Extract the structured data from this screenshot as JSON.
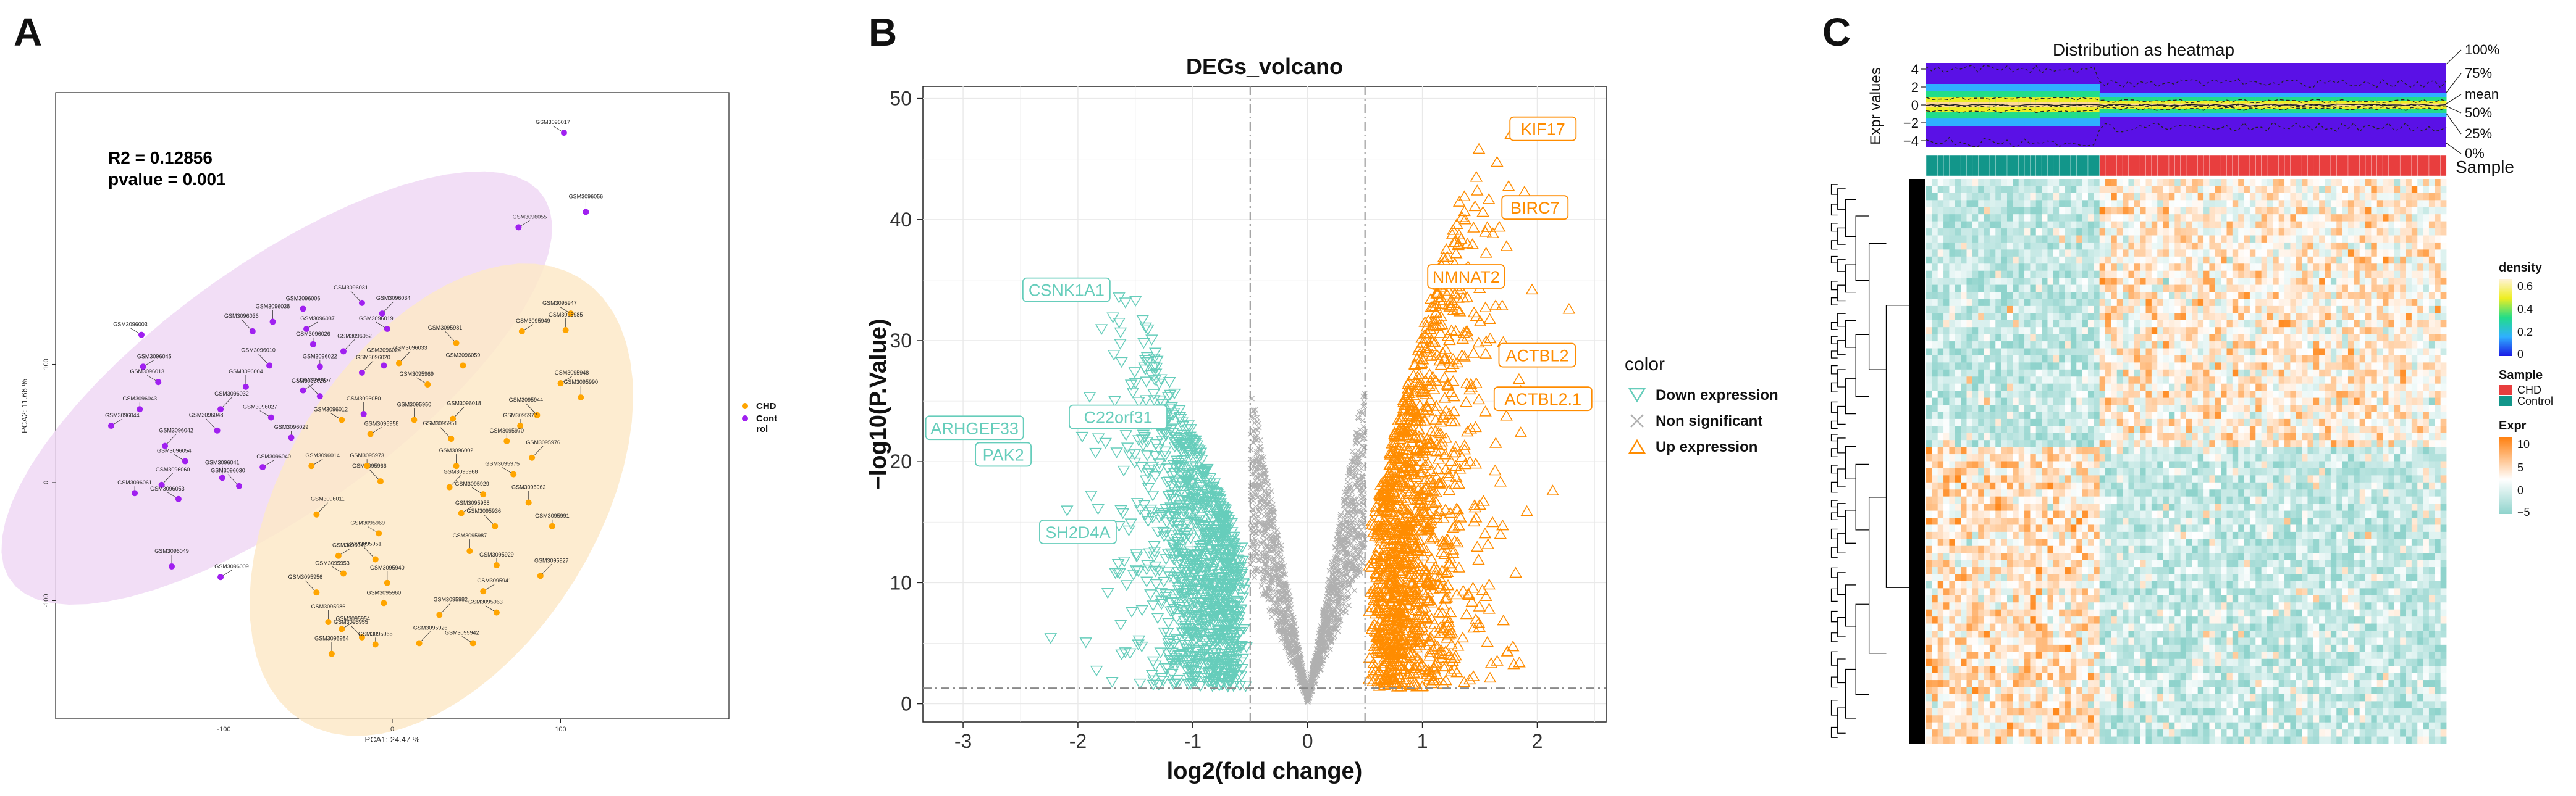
{
  "panel_labels": {
    "a": "A",
    "b": "B",
    "c": "C"
  },
  "colors": {
    "chd": "#ffa500",
    "control": "#a020f0",
    "chd_ellipse": "#fde9c8",
    "control_ellipse": "#f0d8f4",
    "down": "#66cdbb",
    "non_sig": "#b0b0b0",
    "up": "#ff8c00",
    "heat_low": "#8fd3cc",
    "heat_high": "#ff8a1f",
    "sample_chd": "#e83e3e",
    "sample_control": "#12968a"
  },
  "chart_data": [
    {
      "type": "scatter",
      "panel": "A",
      "title": "",
      "stats_r2": "R2 = 0.12856",
      "stats_p": "pvalue = 0.001",
      "xlabel": "PCA1: 24.47 %",
      "ylabel": "PCA2: 11.66 %",
      "xlim": [
        -200,
        200
      ],
      "ylim": [
        -200,
        330
      ],
      "xticks": [
        "-100",
        "0",
        "100"
      ],
      "yticks": [
        "-100",
        "0",
        "100"
      ],
      "legend": {
        "position": "right",
        "items": [
          "CHD",
          "Cont",
          "rol"
        ]
      },
      "series": [
        {
          "name": "Control",
          "points": [
            {
              "label": "GSM3096017",
              "x": 102,
              "y": 296
            },
            {
              "label": "GSM3096056",
              "x": 115,
              "y": 229
            },
            {
              "label": "GSM3096055",
              "x": 75,
              "y": 216
            },
            {
              "label": "GSM3096031",
              "x": -18,
              "y": 152
            },
            {
              "label": "GSM3096006",
              "x": -53,
              "y": 147
            },
            {
              "label": "GSM3096034",
              "x": -6,
              "y": 143
            },
            {
              "label": "GSM3096019",
              "x": -3,
              "y": 130
            },
            {
              "label": "GSM3096038",
              "x": -71,
              "y": 136
            },
            {
              "label": "GSM3096037",
              "x": -51,
              "y": 130
            },
            {
              "label": "GSM3096036",
              "x": -83,
              "y": 128
            },
            {
              "label": "GSM3096026",
              "x": -47,
              "y": 117
            },
            {
              "label": "GSM3096052",
              "x": -29,
              "y": 111
            },
            {
              "label": "GSM3096003",
              "x": -149,
              "y": 125
            },
            {
              "label": "GSM3096024",
              "x": -5,
              "y": 99
            },
            {
              "label": "GSM3096045",
              "x": -148,
              "y": 98
            },
            {
              "label": "GSM3096010",
              "x": -73,
              "y": 99
            },
            {
              "label": "GSM3096022",
              "x": -43,
              "y": 98
            },
            {
              "label": "GSM3096020",
              "x": -18,
              "y": 93
            },
            {
              "label": "GSM3096013",
              "x": -139,
              "y": 85
            },
            {
              "label": "GSM3096004",
              "x": -87,
              "y": 81
            },
            {
              "label": "GSM3096057",
              "x": -53,
              "y": 78
            },
            {
              "label": "GSM3096025",
              "x": -43,
              "y": 73
            },
            {
              "label": "GSM3096043",
              "x": -150,
              "y": 62
            },
            {
              "label": "GSM3096032",
              "x": -102,
              "y": 62
            },
            {
              "label": "GSM3096027",
              "x": -72,
              "y": 55
            },
            {
              "label": "GSM3096050",
              "x": -17,
              "y": 58
            },
            {
              "label": "GSM3096044",
              "x": -167,
              "y": 48
            },
            {
              "label": "GSM3096048",
              "x": -104,
              "y": 44
            },
            {
              "label": "GSM3096029",
              "x": -60,
              "y": 38
            },
            {
              "label": "GSM3096042",
              "x": -135,
              "y": 31
            },
            {
              "label": "GSM3096054",
              "x": -123,
              "y": 18
            },
            {
              "label": "GSM3096041",
              "x": -101,
              "y": 4
            },
            {
              "label": "GSM3096040",
              "x": -77,
              "y": 13
            },
            {
              "label": "GSM3096030",
              "x": -91,
              "y": -3
            },
            {
              "label": "GSM3096061",
              "x": -153,
              "y": -9
            },
            {
              "label": "GSM3096060",
              "x": -137,
              "y": -2
            },
            {
              "label": "GSM3096053",
              "x": -127,
              "y": -14
            },
            {
              "label": "GSM3096049",
              "x": -131,
              "y": -71
            },
            {
              "label": "GSM3096009",
              "x": -102,
              "y": -80
            }
          ]
        },
        {
          "name": "CHD",
          "points": [
            {
              "label": "GSM3095947",
              "x": 106,
              "y": 143
            },
            {
              "label": "GSM3095985",
              "x": 103,
              "y": 129
            },
            {
              "label": "GSM3095949",
              "x": 77,
              "y": 128
            },
            {
              "label": "GSM3095981",
              "x": 38,
              "y": 118
            },
            {
              "label": "GSM3096059",
              "x": 42,
              "y": 99
            },
            {
              "label": "GSM3096033",
              "x": 4,
              "y": 101
            },
            {
              "label": "GSM3095969",
              "x": 21,
              "y": 83
            },
            {
              "label": "GSM3095990",
              "x": 112,
              "y": 72
            },
            {
              "label": "GSM3095948",
              "x": 100,
              "y": 84
            },
            {
              "label": "GSM3095944",
              "x": 86,
              "y": 57
            },
            {
              "label": "GSM3095977",
              "x": 76,
              "y": 48
            },
            {
              "label": "GSM3096018",
              "x": 36,
              "y": 54
            },
            {
              "label": "GSM3096012",
              "x": -30,
              "y": 53
            },
            {
              "label": "GSM3095950",
              "x": 13,
              "y": 53
            },
            {
              "label": "GSM3095958",
              "x": -13,
              "y": 41
            },
            {
              "label": "GSM3095951",
              "x": 35,
              "y": 37
            },
            {
              "label": "GSM3095970",
              "x": 68,
              "y": 35
            },
            {
              "label": "GSM3095976",
              "x": 83,
              "y": 21
            },
            {
              "label": "GSM3095975",
              "x": 72,
              "y": 7
            },
            {
              "label": "GSM3096002",
              "x": 38,
              "y": 14
            },
            {
              "label": "GSM3096014",
              "x": -48,
              "y": 14
            },
            {
              "label": "GSM3095966",
              "x": -7,
              "y": 1
            },
            {
              "label": "GSM3095973",
              "x": -15,
              "y": 14
            },
            {
              "label": "GSM3095968",
              "x": 34,
              "y": -4
            },
            {
              "label": "GSM3095929",
              "x": 54,
              "y": -10
            },
            {
              "label": "GSM3095962",
              "x": 81,
              "y": -17
            },
            {
              "label": "GSM3095958",
              "x": 41,
              "y": -26
            },
            {
              "label": "GSM3095936",
              "x": 61,
              "y": -37
            },
            {
              "label": "GSM3095991",
              "x": 95,
              "y": -37
            },
            {
              "label": "GSM3096011",
              "x": -45,
              "y": -27
            },
            {
              "label": "GSM3095969",
              "x": -8,
              "y": -43
            },
            {
              "label": "GSM3095987",
              "x": 46,
              "y": -58
            },
            {
              "label": "GSM3095946",
              "x": -32,
              "y": -62
            },
            {
              "label": "GSM3095951",
              "x": -10,
              "y": -65
            },
            {
              "label": "GSM3095929",
              "x": 62,
              "y": -70
            },
            {
              "label": "GSM3095927",
              "x": 88,
              "y": -79
            },
            {
              "label": "GSM3095953",
              "x": -29,
              "y": -77
            },
            {
              "label": "GSM3095940",
              "x": -3,
              "y": -85
            },
            {
              "label": "GSM3095941",
              "x": 54,
              "y": -92
            },
            {
              "label": "GSM3095956",
              "x": -45,
              "y": -93
            },
            {
              "label": "GSM3095960",
              "x": -5,
              "y": -102
            },
            {
              "label": "GSM3095982",
              "x": 28,
              "y": -112
            },
            {
              "label": "GSM3095963",
              "x": 62,
              "y": -110
            },
            {
              "label": "GSM3095986",
              "x": -38,
              "y": -118
            },
            {
              "label": "GSM3095954",
              "x": -30,
              "y": -124
            },
            {
              "label": "GSM3095955",
              "x": -18,
              "y": -131
            },
            {
              "label": "GSM3095965",
              "x": -10,
              "y": -137
            },
            {
              "label": "GSM3095926",
              "x": 16,
              "y": -136
            },
            {
              "label": "GSM3095942",
              "x": 48,
              "y": -136
            },
            {
              "label": "GSM3095984",
              "x": -36,
              "y": -145
            }
          ]
        }
      ]
    },
    {
      "type": "scatter",
      "panel": "B",
      "title": "DEGs_volcano",
      "xlabel": "log2(fold change)",
      "ylabel": "−log10(P.Value)",
      "xlim": [
        -3.35,
        2.6
      ],
      "ylim": [
        -1.5,
        51
      ],
      "xticks": [
        -3,
        -2,
        -1,
        0,
        1,
        2
      ],
      "yticks": [
        0,
        10,
        20,
        30,
        40,
        50
      ],
      "thresholds": {
        "logfc": [
          -0.5,
          0.5
        ],
        "p": 1.3
      },
      "legend": {
        "title": "color",
        "items": [
          "Down expression",
          "Non significant",
          "Up expression"
        ]
      },
      "labeled_genes": [
        {
          "gene": "KIF17",
          "x": 2.05,
          "y": 47.5,
          "group": "up"
        },
        {
          "gene": "BIRC7",
          "x": 1.98,
          "y": 41.0,
          "group": "up"
        },
        {
          "gene": "NMNAT2",
          "x": 1.38,
          "y": 35.3,
          "group": "up"
        },
        {
          "gene": "ACTBL2",
          "x": 2.0,
          "y": 28.8,
          "group": "up"
        },
        {
          "gene": "ACTBL2.1",
          "x": 2.05,
          "y": 25.2,
          "group": "up"
        },
        {
          "gene": "CSNK1A1",
          "x": -2.1,
          "y": 34.2,
          "group": "down"
        },
        {
          "gene": "ARHGEF33",
          "x": -2.9,
          "y": 22.8,
          "group": "down"
        },
        {
          "gene": "C22orf31",
          "x": -1.65,
          "y": 23.7,
          "group": "down"
        },
        {
          "gene": "PAK2",
          "x": -2.65,
          "y": 20.6,
          "group": "down"
        },
        {
          "gene": "SH2D4A",
          "x": -2.0,
          "y": 14.2,
          "group": "down"
        }
      ]
    },
    {
      "type": "heatmap",
      "panel": "C",
      "title": "Distribution as heatmap",
      "top_ylabel": "Expr values",
      "top_yticks": [
        "4",
        "2",
        "0",
        "−2",
        "−4"
      ],
      "quantile_labels": [
        "100%",
        "75%",
        "mean",
        "50%",
        "25%",
        "0%"
      ],
      "annotation_label": "Sample",
      "groups": [
        {
          "name": "Control",
          "n": 30
        },
        {
          "name": "CHD",
          "n": 60
        }
      ],
      "legends": {
        "density": {
          "title": "density",
          "ticks": [
            "0.6",
            "0.4",
            "0.2",
            "0"
          ]
        },
        "sample": {
          "title": "Sample",
          "items": [
            "CHD",
            "Control"
          ]
        },
        "expr": {
          "title": "Expr",
          "ticks": [
            "10",
            "5",
            "0",
            "−5"
          ]
        }
      }
    }
  ]
}
